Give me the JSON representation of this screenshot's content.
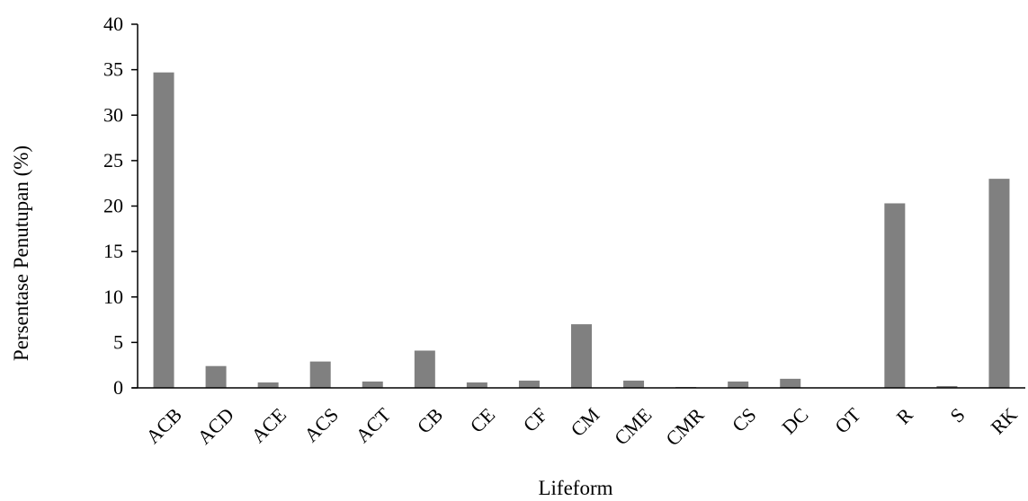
{
  "chart_data": {
    "type": "bar",
    "title": "",
    "xlabel": "Lifeform",
    "ylabel": "Persentase Penutupan (%)",
    "ylim": [
      0,
      40
    ],
    "yticks": [
      0,
      5,
      10,
      15,
      20,
      25,
      30,
      35,
      40
    ],
    "grid": false,
    "legend": "none",
    "bar_color": "#808080",
    "categories": [
      "ACB",
      "ACD",
      "ACE",
      "ACS",
      "ACT",
      "CB",
      "CE",
      "CF",
      "CM",
      "CME",
      "CMR",
      "CS",
      "DC",
      "OT",
      "R",
      "S",
      "RK"
    ],
    "values": [
      34.7,
      2.4,
      0.6,
      2.9,
      0.7,
      4.1,
      0.6,
      0.8,
      7.0,
      0.8,
      0.1,
      0.7,
      1.0,
      0.0,
      20.3,
      0.2,
      23.0
    ]
  }
}
